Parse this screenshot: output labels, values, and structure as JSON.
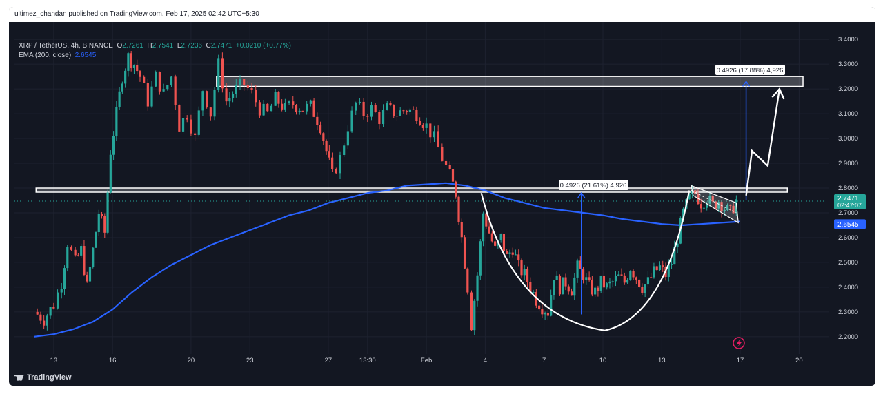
{
  "publisher_line": "ultimez_chandan published on TradingView.com, Feb 17, 2025 02:42 UTC+5:30",
  "legend": {
    "symbol": "XRP / TetherUS, 4h, BINANCE",
    "o_label": "O",
    "o": "2.7261",
    "h_label": "H",
    "h": "2.7541",
    "l_label": "L",
    "l": "2.7236",
    "c_label": "C",
    "c": "2.7471",
    "change": "+0.0210 (+0.77%)",
    "ema_label": "EMA (200, close)",
    "ema_value": "2.6545"
  },
  "price_badge": {
    "price": "2.7471",
    "countdown": "02:47:07"
  },
  "ema_badge": "2.6545",
  "annotations": {
    "measure_1": "0.4926 (21.61%) 4,926",
    "measure_2": "0.4926 (17.88%) 4,926"
  },
  "footer_brand": "TradingView",
  "colors": {
    "up": "#26a69a",
    "down": "#ef5350",
    "ema": "#2962ff",
    "background": "#131722"
  },
  "chart_data": {
    "type": "candlestick",
    "ylim": [
      2.13,
      3.47
    ],
    "y_ticks": [
      3.4,
      3.3,
      3.2,
      3.1,
      3.0,
      2.9,
      2.8,
      2.7,
      2.6,
      2.5,
      2.4,
      2.3,
      2.2
    ],
    "x_ticks": [
      {
        "label": "13",
        "day": 13
      },
      {
        "label": "16",
        "day": 16
      },
      {
        "label": "20",
        "day": 20
      },
      {
        "label": "23",
        "day": 23
      },
      {
        "label": "27",
        "day": 27
      },
      {
        "label": "13:30",
        "day": 29
      },
      {
        "label": "Feb",
        "day": 32
      },
      {
        "label": "4",
        "day": 35
      },
      {
        "label": "7",
        "day": 38
      },
      {
        "label": "10",
        "day": 41
      },
      {
        "label": "13",
        "day": 44
      },
      {
        "label": "17",
        "day": 48
      },
      {
        "label": "20",
        "day": 51
      }
    ],
    "price_path": [
      [
        12.0,
        2.3
      ],
      [
        12.5,
        2.27
      ],
      [
        13.0,
        2.33
      ],
      [
        13.4,
        2.42
      ],
      [
        13.7,
        2.58
      ],
      [
        14.1,
        2.5
      ],
      [
        14.4,
        2.55
      ],
      [
        14.7,
        2.4
      ],
      [
        15.0,
        2.55
      ],
      [
        15.3,
        2.7
      ],
      [
        15.6,
        2.62
      ],
      [
        15.9,
        2.95
      ],
      [
        16.2,
        3.1
      ],
      [
        16.5,
        3.25
      ],
      [
        16.8,
        3.33
      ],
      [
        17.1,
        3.3
      ],
      [
        17.4,
        3.25
      ],
      [
        17.8,
        3.15
      ],
      [
        18.2,
        3.25
      ],
      [
        18.6,
        3.18
      ],
      [
        19.0,
        3.25
      ],
      [
        19.4,
        3.05
      ],
      [
        19.8,
        3.1
      ],
      [
        20.2,
        3.0
      ],
      [
        20.6,
        3.2
      ],
      [
        21.0,
        3.1
      ],
      [
        21.4,
        3.3
      ],
      [
        21.8,
        3.15
      ],
      [
        22.3,
        3.2
      ],
      [
        22.7,
        3.22
      ],
      [
        23.1,
        3.18
      ],
      [
        23.5,
        3.12
      ],
      [
        23.9,
        3.1
      ],
      [
        24.3,
        3.16
      ],
      [
        24.8,
        3.12
      ],
      [
        25.2,
        3.14
      ],
      [
        25.7,
        3.12
      ],
      [
        26.1,
        3.13
      ],
      [
        26.6,
        3.05
      ],
      [
        26.9,
        2.95
      ],
      [
        27.2,
        2.85
      ],
      [
        27.6,
        2.92
      ],
      [
        28.0,
        3.05
      ],
      [
        28.4,
        3.14
      ],
      [
        28.8,
        3.1
      ],
      [
        29.2,
        3.12
      ],
      [
        29.6,
        3.08
      ],
      [
        30.0,
        3.12
      ],
      [
        30.5,
        3.1
      ],
      [
        31.0,
        3.12
      ],
      [
        31.5,
        3.1
      ],
      [
        32.0,
        3.05
      ],
      [
        32.4,
        3.0
      ],
      [
        32.8,
        2.92
      ],
      [
        33.2,
        2.85
      ],
      [
        33.5,
        2.78
      ],
      [
        33.8,
        2.6
      ],
      [
        34.1,
        2.4
      ],
      [
        34.3,
        2.25
      ],
      [
        34.6,
        2.45
      ],
      [
        34.9,
        2.7
      ],
      [
        35.2,
        2.62
      ],
      [
        35.5,
        2.55
      ],
      [
        35.8,
        2.6
      ],
      [
        36.1,
        2.52
      ],
      [
        36.4,
        2.56
      ],
      [
        36.7,
        2.48
      ],
      [
        37.0,
        2.45
      ],
      [
        37.3,
        2.4
      ],
      [
        37.6,
        2.35
      ],
      [
        37.9,
        2.32
      ],
      [
        38.2,
        2.3
      ],
      [
        38.5,
        2.45
      ],
      [
        38.8,
        2.4
      ],
      [
        39.1,
        2.42
      ],
      [
        39.4,
        2.39
      ],
      [
        39.7,
        2.48
      ],
      [
        40.0,
        2.45
      ],
      [
        40.3,
        2.4
      ],
      [
        40.6,
        2.38
      ],
      [
        40.9,
        2.42
      ],
      [
        41.2,
        2.4
      ],
      [
        41.5,
        2.42
      ],
      [
        41.8,
        2.44
      ],
      [
        42.1,
        2.42
      ],
      [
        42.4,
        2.48
      ],
      [
        42.7,
        2.44
      ],
      [
        43.0,
        2.4
      ],
      [
        43.3,
        2.42
      ],
      [
        43.6,
        2.46
      ],
      [
        43.9,
        2.48
      ],
      [
        44.2,
        2.45
      ],
      [
        44.5,
        2.5
      ],
      [
        44.8,
        2.6
      ],
      [
        45.1,
        2.7
      ],
      [
        45.4,
        2.76
      ],
      [
        45.7,
        2.78
      ],
      [
        46.0,
        2.74
      ],
      [
        46.3,
        2.76
      ],
      [
        46.6,
        2.73
      ],
      [
        46.9,
        2.75
      ],
      [
        47.2,
        2.72
      ],
      [
        47.5,
        2.7
      ],
      [
        47.8,
        2.75
      ]
    ],
    "ema": [
      [
        12.0,
        2.2
      ],
      [
        13.0,
        2.21
      ],
      [
        14.0,
        2.23
      ],
      [
        15.0,
        2.26
      ],
      [
        16.0,
        2.31
      ],
      [
        17.0,
        2.38
      ],
      [
        18.0,
        2.44
      ],
      [
        19.0,
        2.49
      ],
      [
        20.0,
        2.53
      ],
      [
        21.0,
        2.57
      ],
      [
        22.0,
        2.6
      ],
      [
        23.0,
        2.63
      ],
      [
        24.0,
        2.66
      ],
      [
        25.0,
        2.69
      ],
      [
        26.0,
        2.71
      ],
      [
        27.0,
        2.74
      ],
      [
        28.0,
        2.76
      ],
      [
        29.0,
        2.78
      ],
      [
        30.0,
        2.79
      ],
      [
        31.0,
        2.81
      ],
      [
        32.0,
        2.815
      ],
      [
        33.0,
        2.82
      ],
      [
        34.0,
        2.81
      ],
      [
        35.0,
        2.79
      ],
      [
        36.0,
        2.76
      ],
      [
        37.0,
        2.74
      ],
      [
        38.0,
        2.72
      ],
      [
        39.0,
        2.71
      ],
      [
        40.0,
        2.7
      ],
      [
        41.0,
        2.69
      ],
      [
        42.0,
        2.675
      ],
      [
        43.0,
        2.665
      ],
      [
        44.0,
        2.655
      ],
      [
        45.0,
        2.65
      ],
      [
        46.0,
        2.655
      ],
      [
        47.0,
        2.66
      ],
      [
        48.0,
        2.665
      ]
    ],
    "zones": [
      {
        "x1": 12.1,
        "x2": 50.4,
        "y1": 2.8,
        "y2": 2.79
      },
      {
        "x1": 21.3,
        "x2": 51.2,
        "y1": 3.25,
        "y2": 3.21
      }
    ],
    "cup": [
      [
        34.8,
        2.78
      ],
      [
        41.1,
        2.225
      ],
      [
        45.4,
        2.79
      ]
    ],
    "channel": {
      "upper": [
        [
          45.5,
          2.81
        ],
        [
          47.8,
          2.74
        ]
      ],
      "lower": [
        [
          45.6,
          2.77
        ],
        [
          47.9,
          2.66
        ]
      ]
    },
    "measure_arrows": [
      {
        "x": 39.9,
        "from": 2.29,
        "to": 2.78
      },
      {
        "x": 48.3,
        "from": 2.75,
        "to": 3.23
      }
    ],
    "projection": [
      [
        48.3,
        2.77
      ],
      [
        48.6,
        2.95
      ],
      [
        49.4,
        2.89
      ],
      [
        50.0,
        3.2
      ]
    ]
  }
}
